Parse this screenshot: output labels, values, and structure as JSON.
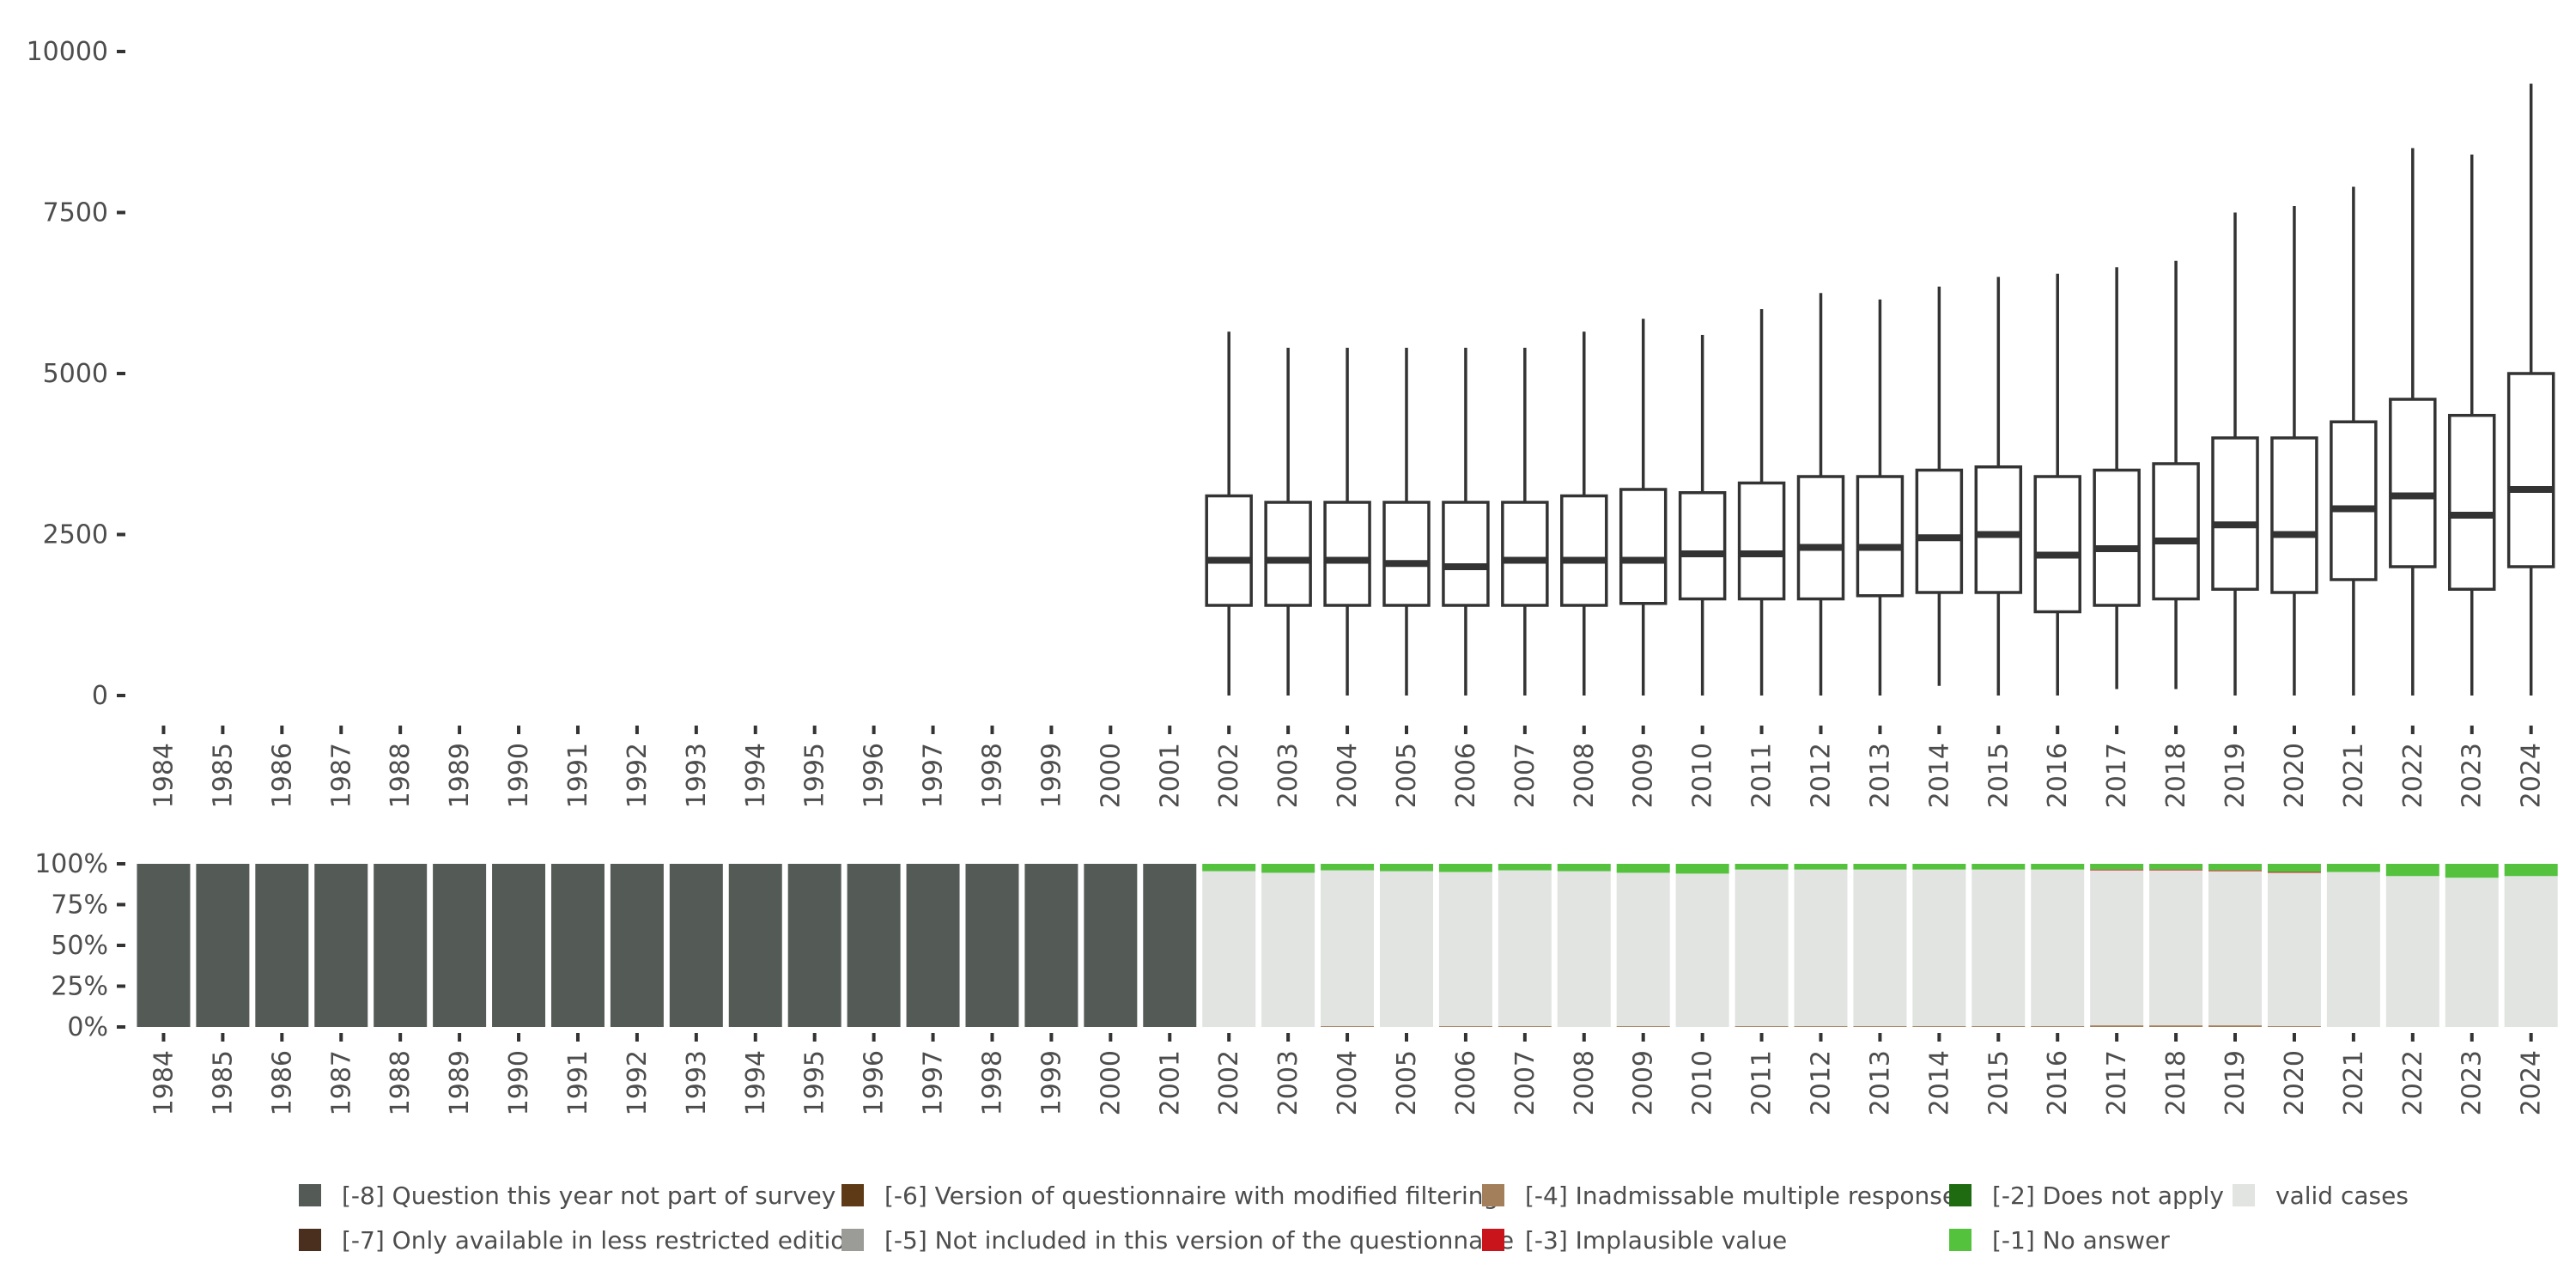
{
  "chart_data": [
    {
      "type": "boxplot",
      "title": "",
      "xlabel": "",
      "ylabel": "",
      "ylim": [
        0,
        10000
      ],
      "y_ticks": [
        0,
        2500,
        5000,
        7500,
        10000
      ],
      "y_tick_labels": [
        "0",
        "2500",
        "5000",
        "7500",
        "10000"
      ],
      "grid": false,
      "categories": [
        "1984",
        "1985",
        "1986",
        "1987",
        "1988",
        "1989",
        "1990",
        "1991",
        "1992",
        "1993",
        "1994",
        "1995",
        "1996",
        "1997",
        "1998",
        "1999",
        "2000",
        "2001",
        "2002",
        "2003",
        "2004",
        "2005",
        "2006",
        "2007",
        "2008",
        "2009",
        "2010",
        "2011",
        "2012",
        "2013",
        "2014",
        "2015",
        "2016",
        "2017",
        "2018",
        "2019",
        "2020",
        "2021",
        "2022",
        "2023",
        "2024"
      ],
      "boxes": [
        {
          "year": "2002",
          "min": 0,
          "q1": 1400,
          "median": 2100,
          "q3": 3100,
          "max": 5650
        },
        {
          "year": "2003",
          "min": 0,
          "q1": 1400,
          "median": 2100,
          "q3": 3000,
          "max": 5400
        },
        {
          "year": "2004",
          "min": 0,
          "q1": 1400,
          "median": 2100,
          "q3": 3000,
          "max": 5400
        },
        {
          "year": "2005",
          "min": 0,
          "q1": 1400,
          "median": 2050,
          "q3": 3000,
          "max": 5400
        },
        {
          "year": "2006",
          "min": 0,
          "q1": 1400,
          "median": 2000,
          "q3": 3000,
          "max": 5400
        },
        {
          "year": "2007",
          "min": 0,
          "q1": 1400,
          "median": 2100,
          "q3": 3000,
          "max": 5400
        },
        {
          "year": "2008",
          "min": 0,
          "q1": 1400,
          "median": 2100,
          "q3": 3100,
          "max": 5650
        },
        {
          "year": "2009",
          "min": 0,
          "q1": 1430,
          "median": 2100,
          "q3": 3200,
          "max": 5850
        },
        {
          "year": "2010",
          "min": 0,
          "q1": 1500,
          "median": 2200,
          "q3": 3150,
          "max": 5600
        },
        {
          "year": "2011",
          "min": 0,
          "q1": 1500,
          "median": 2200,
          "q3": 3300,
          "max": 6000
        },
        {
          "year": "2012",
          "min": 0,
          "q1": 1500,
          "median": 2300,
          "q3": 3400,
          "max": 6250
        },
        {
          "year": "2013",
          "min": 0,
          "q1": 1550,
          "median": 2300,
          "q3": 3400,
          "max": 6150
        },
        {
          "year": "2014",
          "min": 150,
          "q1": 1600,
          "median": 2450,
          "q3": 3500,
          "max": 6350
        },
        {
          "year": "2015",
          "min": 0,
          "q1": 1600,
          "median": 2500,
          "q3": 3550,
          "max": 6500
        },
        {
          "year": "2016",
          "min": 0,
          "q1": 1300,
          "median": 2180,
          "q3": 3400,
          "max": 6550
        },
        {
          "year": "2017",
          "min": 100,
          "q1": 1400,
          "median": 2280,
          "q3": 3500,
          "max": 6650
        },
        {
          "year": "2018",
          "min": 100,
          "q1": 1500,
          "median": 2400,
          "q3": 3600,
          "max": 6750
        },
        {
          "year": "2019",
          "min": 0,
          "q1": 1650,
          "median": 2650,
          "q3": 4000,
          "max": 7500
        },
        {
          "year": "2020",
          "min": 0,
          "q1": 1600,
          "median": 2500,
          "q3": 4000,
          "max": 7600
        },
        {
          "year": "2021",
          "min": 0,
          "q1": 1800,
          "median": 2900,
          "q3": 4250,
          "max": 7900
        },
        {
          "year": "2022",
          "min": 0,
          "q1": 2000,
          "median": 3100,
          "q3": 4600,
          "max": 8500
        },
        {
          "year": "2023",
          "min": 0,
          "q1": 1650,
          "median": 2800,
          "q3": 4350,
          "max": 8400
        },
        {
          "year": "2024",
          "min": 0,
          "q1": 2000,
          "median": 3200,
          "q3": 5000,
          "max": 9500
        }
      ]
    },
    {
      "type": "stacked-bar",
      "title": "",
      "xlabel": "",
      "ylabel": "",
      "ylim": [
        0,
        1
      ],
      "y_ticks": [
        0,
        0.25,
        0.5,
        0.75,
        1
      ],
      "y_tick_labels": [
        "0%",
        "25%",
        "50%",
        "75%",
        "100%"
      ],
      "categories": [
        "1984",
        "1985",
        "1986",
        "1987",
        "1988",
        "1989",
        "1990",
        "1991",
        "1992",
        "1993",
        "1994",
        "1995",
        "1996",
        "1997",
        "1998",
        "1999",
        "2000",
        "2001",
        "2002",
        "2003",
        "2004",
        "2005",
        "2006",
        "2007",
        "2008",
        "2009",
        "2010",
        "2011",
        "2012",
        "2013",
        "2014",
        "2015",
        "2016",
        "2017",
        "2018",
        "2019",
        "2020",
        "2021",
        "2022",
        "2023",
        "2024"
      ],
      "series": [
        {
          "name": "[-8] Question this year not part of survey",
          "color": "#545b57",
          "values": [
            1,
            1,
            1,
            1,
            1,
            1,
            1,
            1,
            1,
            1,
            1,
            1,
            1,
            1,
            1,
            1,
            1,
            1,
            0,
            0,
            0,
            0,
            0,
            0,
            0,
            0,
            0,
            0,
            0,
            0,
            0,
            0,
            0,
            0,
            0,
            0,
            0,
            0,
            0,
            0,
            0
          ]
        },
        {
          "name": "[-6] Version of questionnaire with modified filtering",
          "color": "#5e3a17",
          "values": [
            0,
            0,
            0,
            0,
            0,
            0,
            0,
            0,
            0,
            0,
            0,
            0,
            0,
            0,
            0,
            0,
            0,
            0,
            0,
            0,
            0,
            0,
            0,
            0,
            0,
            0,
            0,
            0,
            0,
            0,
            0,
            0,
            0,
            0,
            0,
            0,
            0,
            0,
            0,
            0,
            0
          ]
        },
        {
          "name": "[-4] Inadmissable multiple response",
          "color": "#a47f5b",
          "values": [
            0,
            0,
            0,
            0,
            0,
            0,
            0,
            0,
            0,
            0,
            0,
            0,
            0,
            0,
            0,
            0,
            0,
            0,
            0,
            0,
            0.005,
            0,
            0.005,
            0.005,
            0,
            0.005,
            0,
            0.005,
            0.005,
            0.005,
            0.005,
            0.005,
            0.005,
            0.01,
            0.01,
            0.01,
            0.005,
            0,
            0,
            0,
            0
          ]
        },
        {
          "name": "[-2] Does not apply",
          "color": "#1e6b12",
          "values": [
            0,
            0,
            0,
            0,
            0,
            0,
            0,
            0,
            0,
            0,
            0,
            0,
            0,
            0,
            0,
            0,
            0,
            0,
            0,
            0,
            0,
            0,
            0,
            0,
            0,
            0,
            0,
            0,
            0,
            0,
            0,
            0,
            0,
            0,
            0,
            0,
            0,
            0,
            0,
            0,
            0
          ]
        },
        {
          "name": "valid cases",
          "color": "#e1e4e0",
          "values": [
            0,
            0,
            0,
            0,
            0,
            0,
            0,
            0,
            0,
            0,
            0,
            0,
            0,
            0,
            0,
            0,
            0,
            0,
            0.955,
            0.945,
            0.955,
            0.955,
            0.945,
            0.955,
            0.955,
            0.94,
            0.94,
            0.96,
            0.96,
            0.96,
            0.96,
            0.96,
            0.96,
            0.95,
            0.95,
            0.945,
            0.94,
            0.95,
            0.925,
            0.915,
            0.925
          ]
        },
        {
          "name": "[-7] Only available in less restricted edition",
          "color": "#4a2f1e",
          "values": [
            0,
            0,
            0,
            0,
            0,
            0,
            0,
            0,
            0,
            0,
            0,
            0,
            0,
            0,
            0,
            0,
            0,
            0,
            0,
            0,
            0,
            0,
            0,
            0,
            0,
            0,
            0,
            0,
            0,
            0,
            0,
            0,
            0,
            0,
            0,
            0,
            0,
            0,
            0,
            0,
            0
          ]
        },
        {
          "name": "[-5] Not included in this version of the questionnaire",
          "color": "#9b9c98",
          "values": [
            0,
            0,
            0,
            0,
            0,
            0,
            0,
            0,
            0,
            0,
            0,
            0,
            0,
            0,
            0,
            0,
            0,
            0,
            0,
            0,
            0,
            0,
            0,
            0,
            0,
            0,
            0,
            0,
            0,
            0,
            0,
            0,
            0,
            0,
            0,
            0,
            0,
            0,
            0,
            0,
            0
          ]
        },
        {
          "name": "[-3] Implausible value",
          "color": "#c9141c",
          "values": [
            0,
            0,
            0,
            0,
            0,
            0,
            0,
            0,
            0,
            0,
            0,
            0,
            0,
            0,
            0,
            0,
            0,
            0,
            0,
            0,
            0,
            0,
            0,
            0,
            0,
            0,
            0,
            0,
            0,
            0,
            0,
            0,
            0,
            0.005,
            0.005,
            0.005,
            0.005,
            0,
            0,
            0,
            0
          ]
        },
        {
          "name": "[-1] No answer",
          "color": "#55c23e",
          "values": [
            0,
            0,
            0,
            0,
            0,
            0,
            0,
            0,
            0,
            0,
            0,
            0,
            0,
            0,
            0,
            0,
            0,
            0,
            0.045,
            0.055,
            0.04,
            0.045,
            0.05,
            0.04,
            0.045,
            0.055,
            0.06,
            0.035,
            0.035,
            0.035,
            0.035,
            0.035,
            0.035,
            0.035,
            0.035,
            0.04,
            0.05,
            0.05,
            0.075,
            0.085,
            0.075
          ]
        }
      ],
      "legend": {
        "placement": "bottom",
        "rows": [
          [
            {
              "label": "[-8] Question this year not part of survey",
              "color": "#545b57"
            },
            {
              "label": "[-6] Version of questionnaire with modified filtering",
              "color": "#5e3a17"
            },
            {
              "label": "[-4] Inadmissable multiple response",
              "color": "#a47f5b"
            },
            {
              "label": "[-2] Does not apply",
              "color": "#1e6b12"
            },
            {
              "label": "valid cases",
              "color": "#e1e4e0"
            }
          ],
          [
            {
              "label": "[-7] Only available in less restricted edition",
              "color": "#4a2f1e"
            },
            {
              "label": "[-5] Not included in this version of the questionnaire",
              "color": "#9b9c98"
            },
            {
              "label": "[-3] Implausible value",
              "color": "#c9141c"
            },
            {
              "label": "[-1] No answer",
              "color": "#55c23e"
            }
          ]
        ]
      }
    }
  ]
}
